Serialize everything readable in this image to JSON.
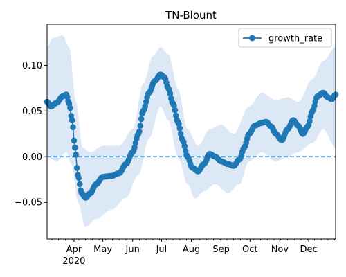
{
  "chart_data": {
    "type": "line",
    "title": "TN-Blount",
    "xlabel": "",
    "ylabel": "",
    "x_range": [
      "2020-03-04",
      "2020-12-29"
    ],
    "ylim": [
      -0.09,
      0.145
    ],
    "x_ticks": [
      {
        "date": "2020-04-01",
        "label": "Apr",
        "sublabel": "2020"
      },
      {
        "date": "2020-05-01",
        "label": "May",
        "sublabel": ""
      },
      {
        "date": "2020-06-01",
        "label": "Jun",
        "sublabel": ""
      },
      {
        "date": "2020-07-01",
        "label": "Jul",
        "sublabel": ""
      },
      {
        "date": "2020-08-01",
        "label": "Aug",
        "sublabel": ""
      },
      {
        "date": "2020-09-01",
        "label": "Sep",
        "sublabel": ""
      },
      {
        "date": "2020-10-01",
        "label": "Oct",
        "sublabel": ""
      },
      {
        "date": "2020-11-01",
        "label": "Nov",
        "sublabel": ""
      },
      {
        "date": "2020-12-01",
        "label": "Dec",
        "sublabel": ""
      }
    ],
    "y_ticks": [
      {
        "value": 0.1,
        "label": "0.10"
      },
      {
        "value": 0.05,
        "label": "0.05"
      },
      {
        "value": 0.0,
        "label": "0.00"
      },
      {
        "value": -0.05,
        "label": "−0.05"
      }
    ],
    "reference_line": {
      "y": 0,
      "style": "dashed"
    },
    "legend": {
      "placement": "upper right",
      "entries": [
        "growth_rate"
      ]
    },
    "grid": false,
    "colors": {
      "series": "#1f77b4",
      "band": "#dce8f5"
    },
    "series": [
      {
        "name": "growth_rate",
        "marker": "circle",
        "key_points": [
          {
            "x": "2020-03-04",
            "y": 0.06
          },
          {
            "x": "2020-03-08",
            "y": 0.055
          },
          {
            "x": "2020-03-14",
            "y": 0.059
          },
          {
            "x": "2020-03-20",
            "y": 0.066
          },
          {
            "x": "2020-03-24",
            "y": 0.068
          },
          {
            "x": "2020-03-27",
            "y": 0.058
          },
          {
            "x": "2020-03-30",
            "y": 0.04
          },
          {
            "x": "2020-04-02",
            "y": 0.01
          },
          {
            "x": "2020-04-05",
            "y": -0.02
          },
          {
            "x": "2020-04-09",
            "y": -0.04
          },
          {
            "x": "2020-04-13",
            "y": -0.045
          },
          {
            "x": "2020-04-18",
            "y": -0.04
          },
          {
            "x": "2020-04-24",
            "y": -0.03
          },
          {
            "x": "2020-05-01",
            "y": -0.022
          },
          {
            "x": "2020-05-10",
            "y": -0.021
          },
          {
            "x": "2020-05-18",
            "y": -0.018
          },
          {
            "x": "2020-05-25",
            "y": -0.008
          },
          {
            "x": "2020-06-01",
            "y": 0.005
          },
          {
            "x": "2020-06-07",
            "y": 0.025
          },
          {
            "x": "2020-06-12",
            "y": 0.05
          },
          {
            "x": "2020-06-18",
            "y": 0.07
          },
          {
            "x": "2020-06-24",
            "y": 0.083
          },
          {
            "x": "2020-06-30",
            "y": 0.09
          },
          {
            "x": "2020-07-04",
            "y": 0.087
          },
          {
            "x": "2020-07-08",
            "y": 0.075
          },
          {
            "x": "2020-07-13",
            "y": 0.058
          },
          {
            "x": "2020-07-18",
            "y": 0.038
          },
          {
            "x": "2020-07-23",
            "y": 0.018
          },
          {
            "x": "2020-07-28",
            "y": 0.0
          },
          {
            "x": "2020-08-02",
            "y": -0.012
          },
          {
            "x": "2020-08-08",
            "y": -0.016
          },
          {
            "x": "2020-08-14",
            "y": -0.008
          },
          {
            "x": "2020-08-20",
            "y": 0.003
          },
          {
            "x": "2020-08-26",
            "y": 0.0
          },
          {
            "x": "2020-09-01",
            "y": -0.005
          },
          {
            "x": "2020-09-08",
            "y": -0.008
          },
          {
            "x": "2020-09-14",
            "y": -0.01
          },
          {
            "x": "2020-09-20",
            "y": -0.003
          },
          {
            "x": "2020-09-25",
            "y": 0.01
          },
          {
            "x": "2020-09-30",
            "y": 0.025
          },
          {
            "x": "2020-10-06",
            "y": 0.034
          },
          {
            "x": "2020-10-13",
            "y": 0.037
          },
          {
            "x": "2020-10-18",
            "y": 0.038
          },
          {
            "x": "2020-10-23",
            "y": 0.033
          },
          {
            "x": "2020-10-28",
            "y": 0.025
          },
          {
            "x": "2020-11-03",
            "y": 0.018
          },
          {
            "x": "2020-11-09",
            "y": 0.03
          },
          {
            "x": "2020-11-15",
            "y": 0.04
          },
          {
            "x": "2020-11-20",
            "y": 0.034
          },
          {
            "x": "2020-11-25",
            "y": 0.025
          },
          {
            "x": "2020-11-30",
            "y": 0.033
          },
          {
            "x": "2020-12-05",
            "y": 0.05
          },
          {
            "x": "2020-12-10",
            "y": 0.066
          },
          {
            "x": "2020-12-16",
            "y": 0.07
          },
          {
            "x": "2020-12-21",
            "y": 0.065
          },
          {
            "x": "2020-12-25",
            "y": 0.063
          },
          {
            "x": "2020-12-29",
            "y": 0.068
          }
        ],
        "band_upper": [
          {
            "x": "2020-03-04",
            "y": 0.12
          },
          {
            "x": "2020-03-10",
            "y": 0.13
          },
          {
            "x": "2020-03-20",
            "y": 0.133
          },
          {
            "x": "2020-03-27",
            "y": 0.12
          },
          {
            "x": "2020-04-03",
            "y": 0.06
          },
          {
            "x": "2020-04-10",
            "y": 0.01
          },
          {
            "x": "2020-04-18",
            "y": 0.005
          },
          {
            "x": "2020-05-01",
            "y": 0.012
          },
          {
            "x": "2020-05-18",
            "y": 0.012
          },
          {
            "x": "2020-06-01",
            "y": 0.03
          },
          {
            "x": "2020-06-12",
            "y": 0.08
          },
          {
            "x": "2020-06-22",
            "y": 0.11
          },
          {
            "x": "2020-06-30",
            "y": 0.12
          },
          {
            "x": "2020-07-08",
            "y": 0.112
          },
          {
            "x": "2020-07-18",
            "y": 0.075
          },
          {
            "x": "2020-07-28",
            "y": 0.03
          },
          {
            "x": "2020-08-08",
            "y": 0.012
          },
          {
            "x": "2020-08-20",
            "y": 0.03
          },
          {
            "x": "2020-09-01",
            "y": 0.035
          },
          {
            "x": "2020-09-14",
            "y": 0.025
          },
          {
            "x": "2020-09-30",
            "y": 0.055
          },
          {
            "x": "2020-10-13",
            "y": 0.07
          },
          {
            "x": "2020-10-28",
            "y": 0.062
          },
          {
            "x": "2020-11-09",
            "y": 0.065
          },
          {
            "x": "2020-11-20",
            "y": 0.06
          },
          {
            "x": "2020-12-05",
            "y": 0.085
          },
          {
            "x": "2020-12-16",
            "y": 0.105
          },
          {
            "x": "2020-12-29",
            "y": 0.12
          }
        ],
        "band_lower": [
          {
            "x": "2020-03-04",
            "y": 0.0
          },
          {
            "x": "2020-03-14",
            "y": -0.005
          },
          {
            "x": "2020-03-24",
            "y": 0.005
          },
          {
            "x": "2020-03-30",
            "y": -0.01
          },
          {
            "x": "2020-04-05",
            "y": -0.05
          },
          {
            "x": "2020-04-13",
            "y": -0.077
          },
          {
            "x": "2020-04-24",
            "y": -0.068
          },
          {
            "x": "2020-05-10",
            "y": -0.058
          },
          {
            "x": "2020-05-25",
            "y": -0.045
          },
          {
            "x": "2020-06-07",
            "y": -0.02
          },
          {
            "x": "2020-06-18",
            "y": 0.02
          },
          {
            "x": "2020-06-30",
            "y": 0.055
          },
          {
            "x": "2020-07-08",
            "y": 0.04
          },
          {
            "x": "2020-07-18",
            "y": 0.0
          },
          {
            "x": "2020-07-28",
            "y": -0.03
          },
          {
            "x": "2020-08-05",
            "y": -0.046
          },
          {
            "x": "2020-08-14",
            "y": -0.038
          },
          {
            "x": "2020-08-26",
            "y": -0.03
          },
          {
            "x": "2020-09-08",
            "y": -0.04
          },
          {
            "x": "2020-09-20",
            "y": -0.03
          },
          {
            "x": "2020-09-30",
            "y": -0.005
          },
          {
            "x": "2020-10-13",
            "y": 0.005
          },
          {
            "x": "2020-10-28",
            "y": -0.005
          },
          {
            "x": "2020-11-09",
            "y": 0.0
          },
          {
            "x": "2020-11-20",
            "y": 0.005
          },
          {
            "x": "2020-12-05",
            "y": 0.015
          },
          {
            "x": "2020-12-16",
            "y": 0.03
          },
          {
            "x": "2020-12-29",
            "y": 0.01
          }
        ]
      }
    ]
  }
}
